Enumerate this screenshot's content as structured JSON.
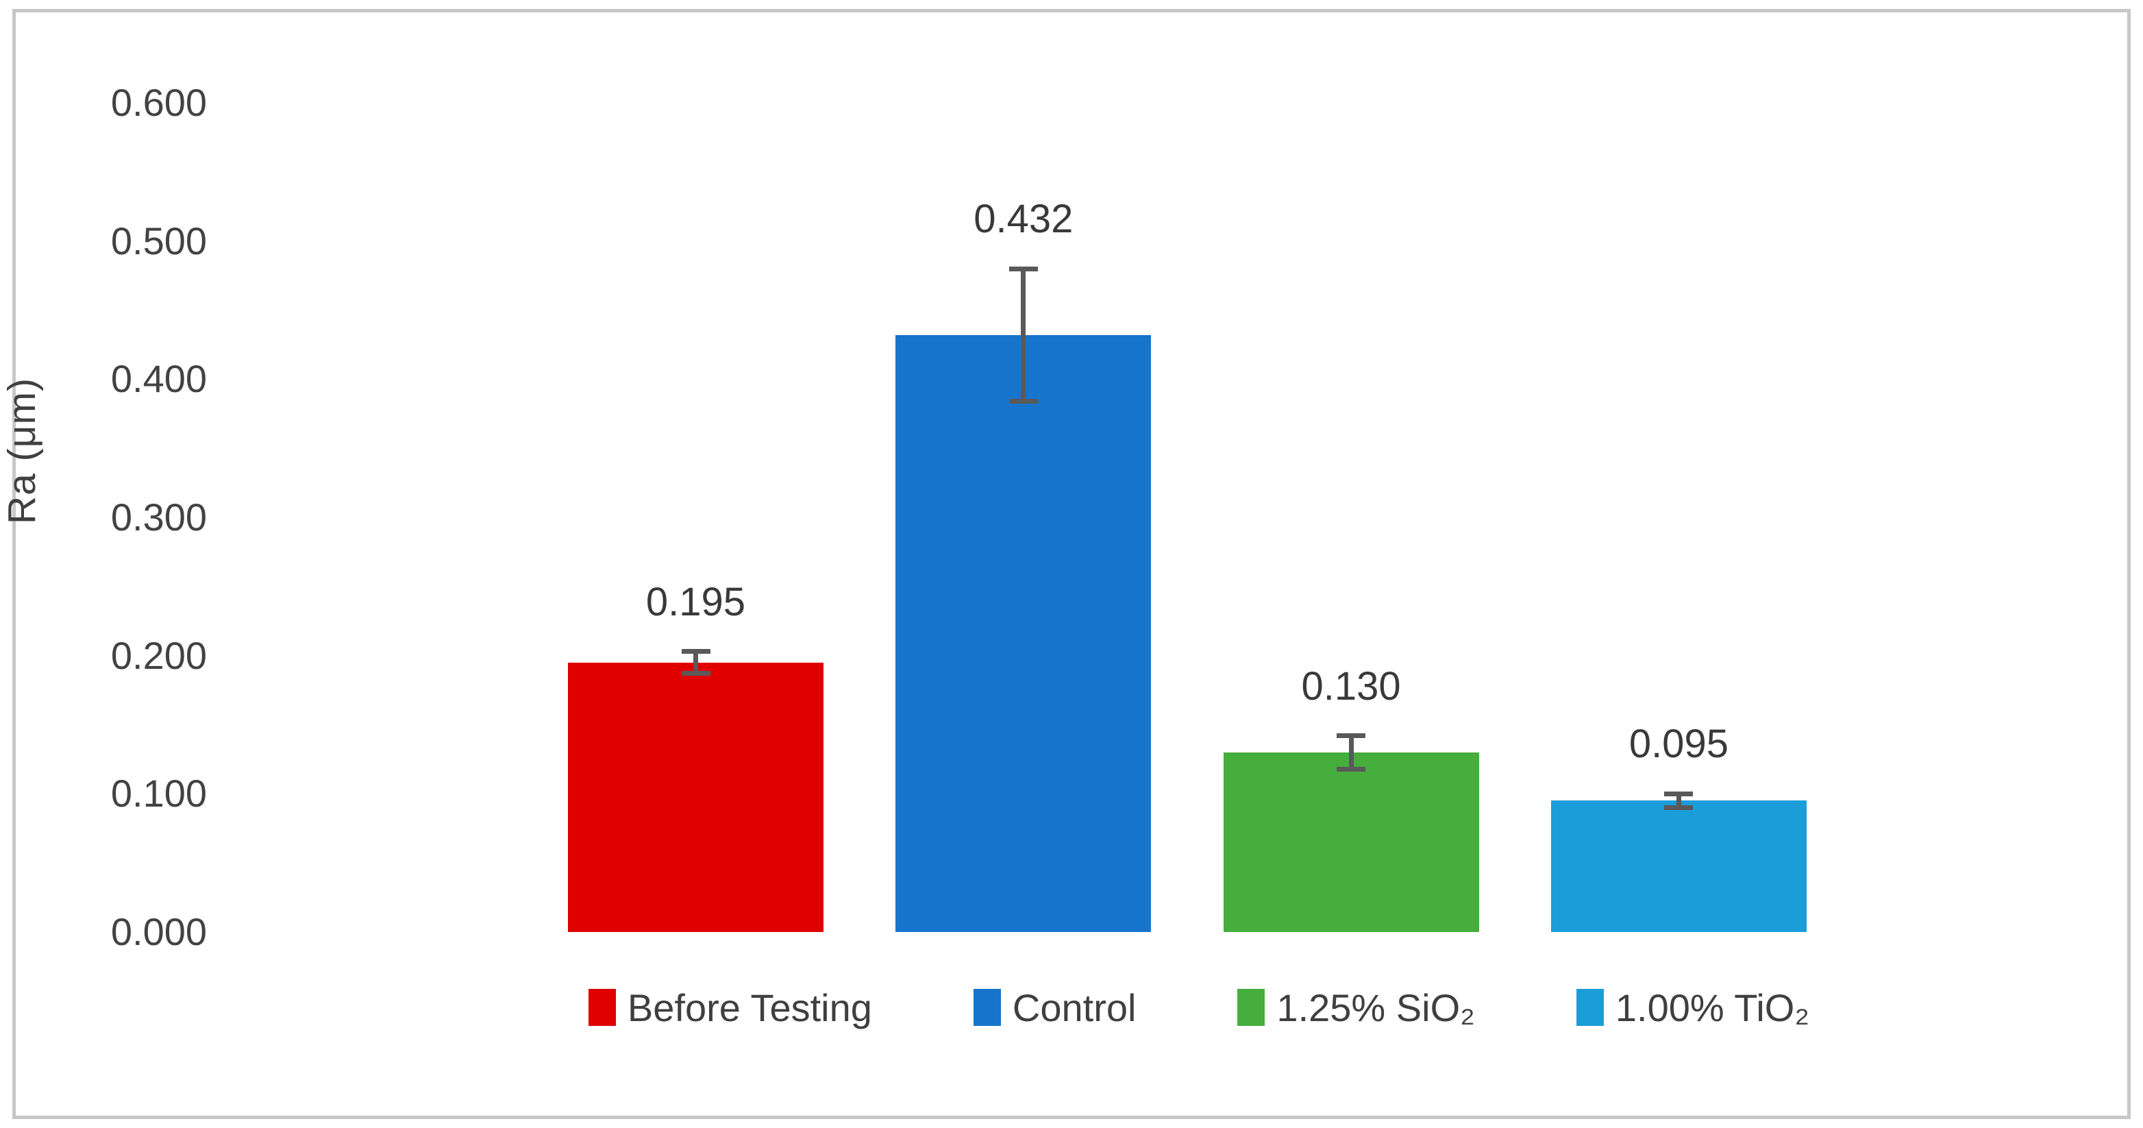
{
  "chart_data": {
    "type": "bar",
    "title": "",
    "ylabel": "Ra (μm)",
    "ylim": [
      0,
      0.6
    ],
    "ytick_step": 0.1,
    "ytick_labels": [
      "0.600",
      "0.500",
      "0.400",
      "0.300",
      "0.200",
      "0.100",
      "0.000"
    ],
    "ytick_values": [
      0.6,
      0.5,
      0.4,
      0.3,
      0.2,
      0.1,
      0.0
    ],
    "grid": false,
    "legend_position": "bottom",
    "series": [
      {
        "name": "Before Testing",
        "value": 0.195,
        "data_label": "0.195",
        "error": 0.008,
        "color": "#e00000"
      },
      {
        "name": "Control",
        "value": 0.432,
        "data_label": "0.432",
        "error": 0.048,
        "color": "#1774cd"
      },
      {
        "name": "1.25% SiO₂",
        "value": 0.13,
        "data_label": "0.130",
        "error": 0.012,
        "color": "#45ae3c"
      },
      {
        "name": "1.00% TiO₂",
        "value": 0.095,
        "data_label": "0.095",
        "error": 0.005,
        "color": "#1a9dd9"
      }
    ]
  },
  "colors": {
    "frame_border": "#c7c7c7",
    "error_bar": "#595959",
    "tick_text": "#424242",
    "data_label_text": "#393939"
  }
}
